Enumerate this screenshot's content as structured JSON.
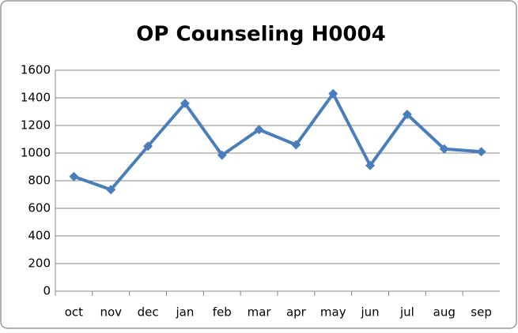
{
  "chart_data": {
    "type": "line",
    "title": "OP Counseling H0004",
    "categories": [
      "oct",
      "nov",
      "dec",
      "jan",
      "feb",
      "mar",
      "apr",
      "may",
      "jun",
      "jul",
      "aug",
      "sep"
    ],
    "values": [
      830,
      735,
      1050,
      1360,
      985,
      1170,
      1060,
      1430,
      910,
      1280,
      1030,
      1010
    ],
    "color": "#4a7ebb",
    "ylim": [
      0,
      1600
    ],
    "yticks": [
      0,
      200,
      400,
      600,
      800,
      1000,
      1200,
      1400,
      1600
    ],
    "grid": true
  }
}
